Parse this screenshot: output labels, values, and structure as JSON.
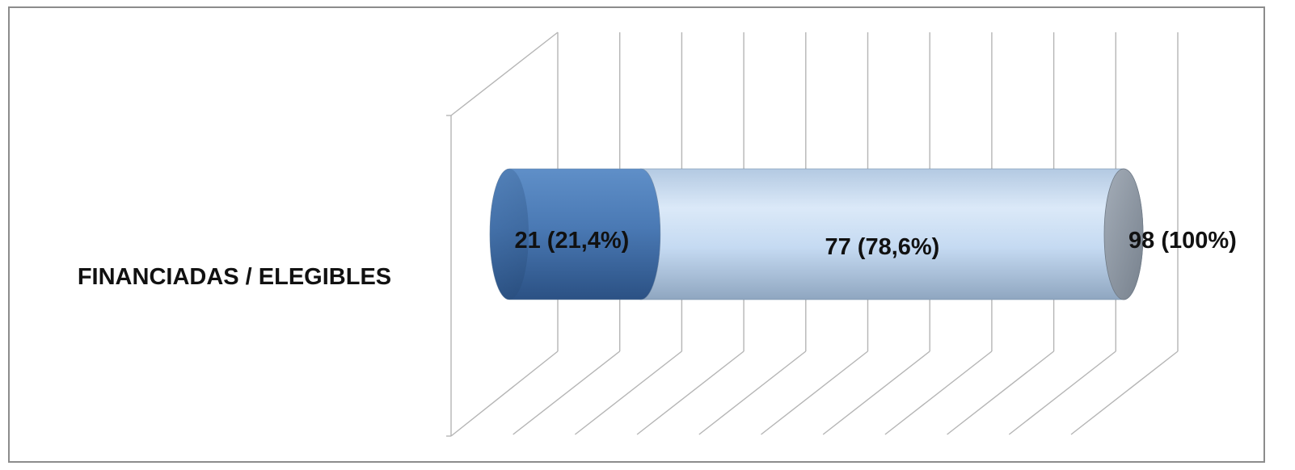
{
  "chart_data": {
    "type": "bar",
    "orientation": "horizontal",
    "style": "3d-cylinder-stacked",
    "categories": [
      "FINANCIADAS / ELEGIBLES"
    ],
    "series": [
      {
        "values": [
          21
        ],
        "label": "21 (21,4%)",
        "color": "#4a79b4"
      },
      {
        "values": [
          77
        ],
        "label": "77 (78,6%)",
        "color": "#c5daf2"
      }
    ],
    "total": {
      "value": 98,
      "label": "98 (100%)",
      "color": "#8a949f"
    },
    "xlim": [
      0,
      100
    ],
    "gridlines": 10,
    "grid": true,
    "axis_labels_shown": false,
    "title": "",
    "legend": "none"
  }
}
